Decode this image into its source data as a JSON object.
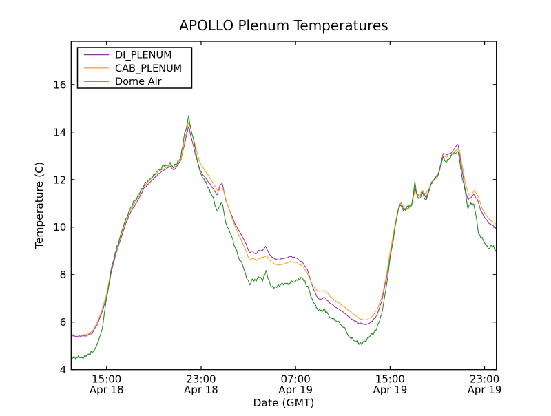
{
  "figure": {
    "title": "APOLLO Plenum Temperatures",
    "xlabel": "Date (GMT)",
    "ylabel": "Temperature (C)",
    "background": "#ffffff",
    "axis_color": "#000000"
  },
  "chart_data": {
    "type": "line",
    "title": "APOLLO Plenum Temperatures",
    "xlabel": "Date (GMT)",
    "ylabel": "Temperature (C)",
    "grid": false,
    "legend_position": "upper left",
    "x_axis_note": "hours after Apr 18 12:00 GMT, total span 36 h",
    "x_hours_span": 36,
    "ylim": [
      4,
      17.82
    ],
    "yticks": [
      4,
      6,
      8,
      10,
      12,
      14,
      16
    ],
    "xticks": [
      {
        "t": 3,
        "time": "15:00",
        "date": "Apr 18"
      },
      {
        "t": 11,
        "time": "23:00",
        "date": "Apr 18"
      },
      {
        "t": 19,
        "time": "07:00",
        "date": "Apr 19"
      },
      {
        "t": 27,
        "time": "15:00",
        "date": "Apr 19"
      },
      {
        "t": 35,
        "time": "23:00",
        "date": "Apr 19"
      }
    ],
    "series": [
      {
        "name": "DI_PLENUM",
        "color": "#9933AA",
        "noise": 0.03,
        "points": [
          [
            0,
            5.42
          ],
          [
            0.7,
            5.4
          ],
          [
            1.3,
            5.42
          ],
          [
            1.8,
            5.55
          ],
          [
            2.2,
            5.9
          ],
          [
            2.6,
            6.4
          ],
          [
            3,
            7.05
          ],
          [
            3.4,
            8.1
          ],
          [
            3.8,
            8.9
          ],
          [
            4.2,
            9.5
          ],
          [
            4.6,
            10.1
          ],
          [
            5,
            10.6
          ],
          [
            5.6,
            11.1
          ],
          [
            6.2,
            11.65
          ],
          [
            6.8,
            11.95
          ],
          [
            7.4,
            12.25
          ],
          [
            8,
            12.45
          ],
          [
            8.4,
            12.55
          ],
          [
            8.7,
            12.4
          ],
          [
            9,
            12.6
          ],
          [
            9.3,
            12.85
          ],
          [
            9.6,
            13.5
          ],
          [
            9.95,
            14.25
          ],
          [
            10.15,
            13.8
          ],
          [
            10.5,
            13.1
          ],
          [
            10.9,
            12.4
          ],
          [
            11.3,
            12.1
          ],
          [
            11.7,
            11.85
          ],
          [
            12.1,
            11.55
          ],
          [
            12.35,
            11.35
          ],
          [
            12.6,
            11.75
          ],
          [
            12.8,
            11.85
          ],
          [
            13.1,
            11.1
          ],
          [
            13.5,
            10.6
          ],
          [
            13.9,
            10.1
          ],
          [
            14.4,
            9.7
          ],
          [
            14.8,
            9.3
          ],
          [
            15.1,
            8.9
          ],
          [
            15.35,
            9.0
          ],
          [
            15.6,
            8.85
          ],
          [
            15.9,
            9.0
          ],
          [
            16.2,
            9.0
          ],
          [
            16.45,
            9.2
          ],
          [
            16.8,
            8.85
          ],
          [
            17.1,
            8.7
          ],
          [
            17.5,
            8.62
          ],
          [
            18,
            8.68
          ],
          [
            18.5,
            8.75
          ],
          [
            19,
            8.72
          ],
          [
            19.5,
            8.55
          ],
          [
            20,
            8.2
          ],
          [
            20.5,
            7.4
          ],
          [
            20.9,
            6.98
          ],
          [
            21.15,
            6.95
          ],
          [
            21.45,
            7.05
          ],
          [
            21.8,
            6.85
          ],
          [
            22.3,
            6.65
          ],
          [
            23,
            6.45
          ],
          [
            23.7,
            6.15
          ],
          [
            24.3,
            5.97
          ],
          [
            24.9,
            5.9
          ],
          [
            25.4,
            6.0
          ],
          [
            25.9,
            6.3
          ],
          [
            26.3,
            6.9
          ],
          [
            26.7,
            7.9
          ],
          [
            27,
            8.9
          ],
          [
            27.4,
            10.0
          ],
          [
            27.75,
            10.9
          ],
          [
            27.95,
            11.05
          ],
          [
            28.15,
            10.75
          ],
          [
            28.5,
            10.8
          ],
          [
            28.85,
            10.95
          ],
          [
            29.1,
            11.65
          ],
          [
            29.3,
            11.4
          ],
          [
            29.5,
            11.3
          ],
          [
            29.75,
            11.55
          ],
          [
            30.05,
            11.2
          ],
          [
            30.5,
            11.9
          ],
          [
            30.8,
            12.05
          ],
          [
            31.1,
            12.25
          ],
          [
            31.5,
            13.1
          ],
          [
            31.8,
            13.05
          ],
          [
            32.1,
            13.1
          ],
          [
            32.45,
            13.3
          ],
          [
            32.75,
            13.52
          ],
          [
            33,
            12.7
          ],
          [
            33.35,
            11.6
          ],
          [
            33.6,
            11.15
          ],
          [
            33.85,
            11.25
          ],
          [
            34.1,
            11.4
          ],
          [
            34.4,
            11.15
          ],
          [
            34.7,
            10.7
          ],
          [
            35,
            10.4
          ],
          [
            35.4,
            10.15
          ],
          [
            35.8,
            10.05
          ],
          [
            36,
            9.9
          ]
        ]
      },
      {
        "name": "CAB_PLENUM",
        "color": "#FFA52B",
        "noise": 0.02,
        "points": [
          [
            0,
            5.47
          ],
          [
            0.7,
            5.45
          ],
          [
            1.3,
            5.48
          ],
          [
            1.8,
            5.62
          ],
          [
            2.2,
            6.0
          ],
          [
            2.6,
            6.5
          ],
          [
            3,
            7.18
          ],
          [
            3.4,
            8.25
          ],
          [
            3.8,
            9.0
          ],
          [
            4.2,
            9.6
          ],
          [
            4.6,
            10.2
          ],
          [
            5,
            10.7
          ],
          [
            5.6,
            11.2
          ],
          [
            6.2,
            11.75
          ],
          [
            6.8,
            12.05
          ],
          [
            7.4,
            12.35
          ],
          [
            8,
            12.5
          ],
          [
            8.4,
            12.6
          ],
          [
            8.7,
            12.5
          ],
          [
            9,
            12.65
          ],
          [
            9.3,
            12.9
          ],
          [
            9.6,
            13.6
          ],
          [
            9.95,
            14.45
          ],
          [
            10.15,
            14.1
          ],
          [
            10.5,
            13.45
          ],
          [
            10.9,
            12.7
          ],
          [
            11.3,
            12.4
          ],
          [
            11.7,
            12.1
          ],
          [
            12.1,
            11.8
          ],
          [
            12.4,
            11.52
          ],
          [
            12.65,
            11.6
          ],
          [
            12.85,
            11.62
          ],
          [
            13.2,
            11.0
          ],
          [
            13.6,
            10.4
          ],
          [
            13.9,
            10.0
          ],
          [
            14.4,
            9.45
          ],
          [
            14.8,
            9.0
          ],
          [
            15.1,
            8.6
          ],
          [
            15.4,
            8.7
          ],
          [
            15.7,
            8.6
          ],
          [
            16,
            8.7
          ],
          [
            16.3,
            8.75
          ],
          [
            16.55,
            8.8
          ],
          [
            16.9,
            8.55
          ],
          [
            17.2,
            8.45
          ],
          [
            17.6,
            8.4
          ],
          [
            18.1,
            8.45
          ],
          [
            18.6,
            8.55
          ],
          [
            19.1,
            8.5
          ],
          [
            19.6,
            8.35
          ],
          [
            20,
            8.05
          ],
          [
            20.5,
            7.5
          ],
          [
            20.9,
            7.3
          ],
          [
            21.2,
            7.3
          ],
          [
            21.5,
            7.33
          ],
          [
            21.9,
            7.1
          ],
          [
            22.4,
            6.9
          ],
          [
            23.1,
            6.65
          ],
          [
            23.8,
            6.38
          ],
          [
            24.4,
            6.15
          ],
          [
            24.9,
            6.08
          ],
          [
            25.4,
            6.2
          ],
          [
            25.9,
            6.5
          ],
          [
            26.3,
            7.05
          ],
          [
            26.7,
            8.0
          ],
          [
            27,
            8.95
          ],
          [
            27.4,
            10.05
          ],
          [
            27.75,
            10.9
          ],
          [
            27.95,
            11.0
          ],
          [
            28.2,
            10.8
          ],
          [
            28.5,
            10.75
          ],
          [
            28.85,
            10.9
          ],
          [
            29.1,
            11.55
          ],
          [
            29.3,
            11.35
          ],
          [
            29.5,
            11.3
          ],
          [
            29.75,
            11.5
          ],
          [
            30.05,
            11.4
          ],
          [
            30.5,
            11.85
          ],
          [
            30.8,
            12.0
          ],
          [
            31.1,
            12.2
          ],
          [
            31.5,
            13.0
          ],
          [
            31.8,
            12.95
          ],
          [
            32.1,
            13.0
          ],
          [
            32.5,
            13.2
          ],
          [
            32.85,
            13.3
          ],
          [
            33.05,
            12.75
          ],
          [
            33.4,
            11.8
          ],
          [
            33.65,
            11.35
          ],
          [
            33.9,
            11.4
          ],
          [
            34.15,
            11.55
          ],
          [
            34.45,
            11.3
          ],
          [
            34.75,
            10.85
          ],
          [
            35.05,
            10.55
          ],
          [
            35.45,
            10.3
          ],
          [
            35.85,
            10.2
          ],
          [
            36,
            10.1
          ]
        ]
      },
      {
        "name": "Dome Air",
        "color": "#228B22",
        "noise": 0.1,
        "points": [
          [
            0,
            4.56
          ],
          [
            0.5,
            4.5
          ],
          [
            1,
            4.55
          ],
          [
            1.6,
            4.65
          ],
          [
            2,
            4.9
          ],
          [
            2.4,
            5.3
          ],
          [
            2.7,
            5.9
          ],
          [
            3,
            7.0
          ],
          [
            3.4,
            8.2
          ],
          [
            3.8,
            9.05
          ],
          [
            4.2,
            9.65
          ],
          [
            4.6,
            10.25
          ],
          [
            5,
            10.8
          ],
          [
            5.6,
            11.3
          ],
          [
            6.2,
            11.8
          ],
          [
            6.8,
            12.1
          ],
          [
            7.4,
            12.45
          ],
          [
            8,
            12.6
          ],
          [
            8.4,
            12.7
          ],
          [
            8.7,
            12.5
          ],
          [
            9,
            12.75
          ],
          [
            9.3,
            13.0
          ],
          [
            9.6,
            13.9
          ],
          [
            9.95,
            14.7
          ],
          [
            10.15,
            14.1
          ],
          [
            10.5,
            13.3
          ],
          [
            10.9,
            12.35
          ],
          [
            11.3,
            11.95
          ],
          [
            11.7,
            11.6
          ],
          [
            12.1,
            11.1
          ],
          [
            12.35,
            10.6
          ],
          [
            12.6,
            10.95
          ],
          [
            12.8,
            11.0
          ],
          [
            13.1,
            10.2
          ],
          [
            13.5,
            9.7
          ],
          [
            13.9,
            9.1
          ],
          [
            14.4,
            8.5
          ],
          [
            14.8,
            8.0
          ],
          [
            15.1,
            7.6
          ],
          [
            15.4,
            7.8
          ],
          [
            15.7,
            7.75
          ],
          [
            15.95,
            7.95
          ],
          [
            16.2,
            7.75
          ],
          [
            16.5,
            8.15
          ],
          [
            16.9,
            7.45
          ],
          [
            17.2,
            7.45
          ],
          [
            17.6,
            7.55
          ],
          [
            18.1,
            7.6
          ],
          [
            18.7,
            7.65
          ],
          [
            19.2,
            7.75
          ],
          [
            19.55,
            7.9
          ],
          [
            20,
            7.5
          ],
          [
            20.5,
            6.9
          ],
          [
            20.9,
            6.45
          ],
          [
            21.2,
            6.5
          ],
          [
            21.45,
            6.55
          ],
          [
            21.8,
            6.25
          ],
          [
            22.3,
            6.1
          ],
          [
            23,
            5.85
          ],
          [
            23.5,
            5.45
          ],
          [
            24,
            5.2
          ],
          [
            24.5,
            5.1
          ],
          [
            24.9,
            5.18
          ],
          [
            25.4,
            5.45
          ],
          [
            25.9,
            5.8
          ],
          [
            26.3,
            6.4
          ],
          [
            26.7,
            7.6
          ],
          [
            27,
            8.7
          ],
          [
            27.4,
            9.9
          ],
          [
            27.75,
            10.8
          ],
          [
            27.95,
            10.95
          ],
          [
            28.15,
            10.7
          ],
          [
            28.5,
            10.85
          ],
          [
            28.85,
            11.0
          ],
          [
            29.1,
            11.85
          ],
          [
            29.3,
            11.3
          ],
          [
            29.5,
            11.25
          ],
          [
            29.75,
            11.45
          ],
          [
            30.05,
            11.15
          ],
          [
            30.5,
            11.85
          ],
          [
            30.8,
            12.0
          ],
          [
            31.1,
            12.25
          ],
          [
            31.5,
            12.95
          ],
          [
            31.8,
            12.75
          ],
          [
            32.1,
            12.9
          ],
          [
            32.45,
            13.1
          ],
          [
            32.75,
            13.2
          ],
          [
            33,
            12.4
          ],
          [
            33.35,
            11.5
          ],
          [
            33.6,
            10.8
          ],
          [
            33.85,
            11.0
          ],
          [
            34.1,
            10.9
          ],
          [
            34.3,
            10.4
          ],
          [
            34.5,
            9.7
          ],
          [
            34.8,
            9.55
          ],
          [
            35.05,
            9.25
          ],
          [
            35.3,
            9.15
          ],
          [
            35.6,
            9.25
          ],
          [
            35.85,
            9.1
          ],
          [
            36,
            8.9
          ]
        ]
      }
    ]
  }
}
